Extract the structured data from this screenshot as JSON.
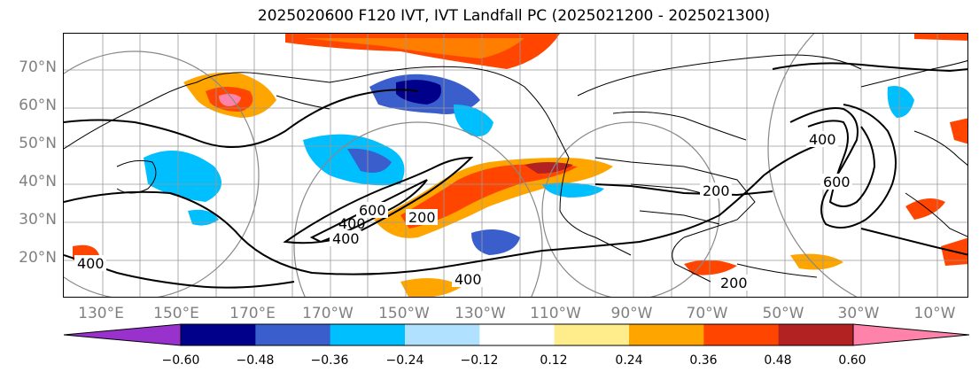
{
  "title": "2025020600 F120 IVT, IVT Landfall PC (2025021200 - 2025021300)",
  "lat_labels": [
    "70°N",
    "60°N",
    "50°N",
    "40°N",
    "30°N",
    "20°N"
  ],
  "lon_labels": [
    "130°E",
    "150°E",
    "170°E",
    "170°W",
    "150°W",
    "130°W",
    "110°W",
    "90°W",
    "70°W",
    "50°W",
    "30°W",
    "10°W"
  ],
  "contour_labels": [
    "400",
    "600",
    "400",
    "200",
    "200",
    "400",
    "400",
    "400",
    "600",
    "200"
  ],
  "colorbar": {
    "tick_labels": [
      "−0.60",
      "−0.48",
      "−0.36",
      "−0.24",
      "−0.12",
      "0.12",
      "0.24",
      "0.36",
      "0.48",
      "0.60"
    ],
    "colors": [
      "#9932cc",
      "#00008b",
      "#3a5fcd",
      "#00bfff",
      "#b0e2ff",
      "#ffffff",
      "#ffec8b",
      "#ffa500",
      "#ff4500",
      "#b22222",
      "#ff82ab"
    ]
  },
  "colors": {
    "coastline": "#000000",
    "grid": "#999999",
    "contour": "#000000",
    "axis_label": "#808080"
  }
}
